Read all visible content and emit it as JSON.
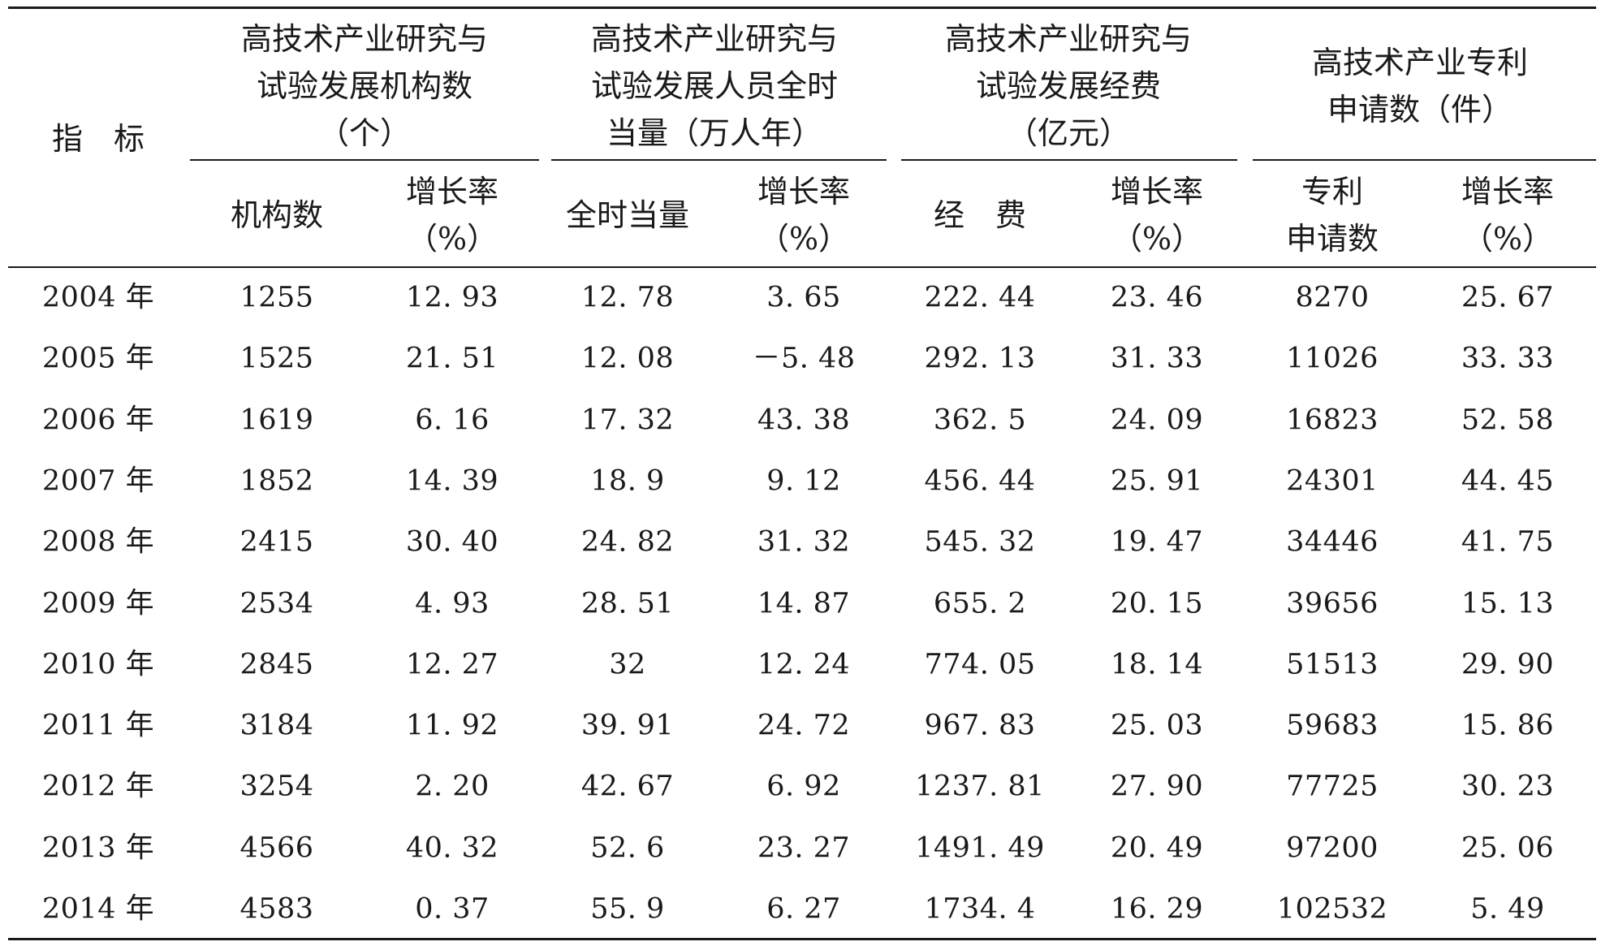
{
  "table": {
    "row_header_label": "指　标",
    "groups": [
      {
        "lines": [
          "高技术产业研究与",
          "试验发展机构数",
          "（个）"
        ],
        "sub": [
          {
            "lines": [
              "机构数"
            ]
          },
          {
            "lines": [
              "增长率",
              "（%）"
            ]
          }
        ]
      },
      {
        "lines": [
          "高技术产业研究与",
          "试验发展人员全时",
          "当量（万人年）"
        ],
        "sub": [
          {
            "lines": [
              "全时当量"
            ]
          },
          {
            "lines": [
              "增长率",
              "（%）"
            ]
          }
        ]
      },
      {
        "lines": [
          "高技术产业研究与",
          "试验发展经费",
          "（亿元）"
        ],
        "sub": [
          {
            "lines": [
              "经　费"
            ]
          },
          {
            "lines": [
              "增长率",
              "（%）"
            ]
          }
        ]
      },
      {
        "lines": [
          "高技术产业专利",
          "申请数（件）"
        ],
        "sub": [
          {
            "lines": [
              "专利",
              "申请数"
            ]
          },
          {
            "lines": [
              "增长率",
              "（%）"
            ]
          }
        ]
      }
    ],
    "rows": [
      {
        "year": "2004 年",
        "values": [
          "1255",
          "12. 93",
          "12. 78",
          "3. 65",
          "222. 44",
          "23. 46",
          "8270",
          "25. 67"
        ]
      },
      {
        "year": "2005 年",
        "values": [
          "1525",
          "21. 51",
          "12. 08",
          "－5. 48",
          "292. 13",
          "31. 33",
          "11026",
          "33. 33"
        ]
      },
      {
        "year": "2006 年",
        "values": [
          "1619",
          "6. 16",
          "17. 32",
          "43. 38",
          "362. 5",
          "24. 09",
          "16823",
          "52. 58"
        ]
      },
      {
        "year": "2007 年",
        "values": [
          "1852",
          "14. 39",
          "18. 9",
          "9. 12",
          "456. 44",
          "25. 91",
          "24301",
          "44. 45"
        ]
      },
      {
        "year": "2008 年",
        "values": [
          "2415",
          "30. 40",
          "24. 82",
          "31. 32",
          "545. 32",
          "19. 47",
          "34446",
          "41. 75"
        ]
      },
      {
        "year": "2009 年",
        "values": [
          "2534",
          "4. 93",
          "28. 51",
          "14. 87",
          "655. 2",
          "20. 15",
          "39656",
          "15. 13"
        ]
      },
      {
        "year": "2010 年",
        "values": [
          "2845",
          "12. 27",
          "32",
          "12. 24",
          "774. 05",
          "18. 14",
          "51513",
          "29. 90"
        ]
      },
      {
        "year": "2011 年",
        "values": [
          "3184",
          "11. 92",
          "39. 91",
          "24. 72",
          "967. 83",
          "25. 03",
          "59683",
          "15. 86"
        ]
      },
      {
        "year": "2012 年",
        "values": [
          "3254",
          "2. 20",
          "42. 67",
          "6. 92",
          "1237. 81",
          "27. 90",
          "77725",
          "30. 23"
        ]
      },
      {
        "year": "2013 年",
        "values": [
          "4566",
          "40. 32",
          "52. 6",
          "23. 27",
          "1491. 49",
          "20. 49",
          "97200",
          "25. 06"
        ]
      },
      {
        "year": "2014 年",
        "values": [
          "4583",
          "0. 37",
          "55. 9",
          "6. 27",
          "1734. 4",
          "16. 29",
          "102532",
          "5. 49"
        ]
      }
    ]
  }
}
